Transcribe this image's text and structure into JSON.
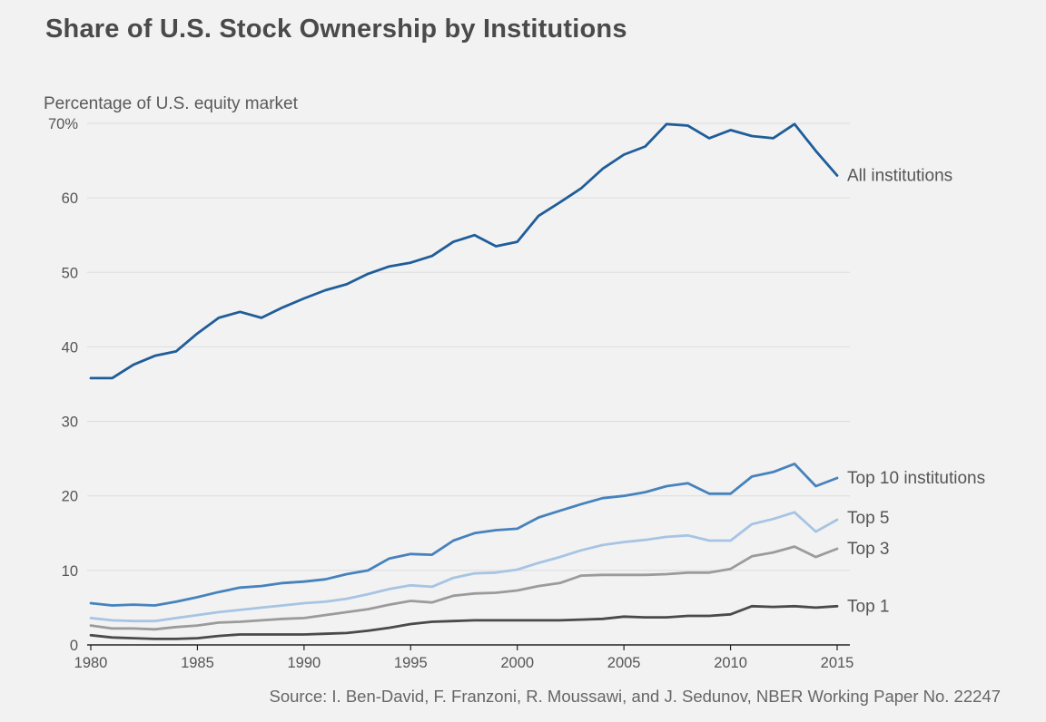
{
  "title": "Share of U.S. Stock Ownership by Institutions",
  "source": "Source: I. Ben-David, F. Franzoni, R. Moussawi, and J. Sedunov, NBER Working Paper No. 22247",
  "chart_data": {
    "type": "line",
    "title": "Share of U.S. Stock Ownership by Institutions",
    "ylabel": "Percentage of U.S. equity market",
    "xlabel": "",
    "xlim": [
      1980,
      2015
    ],
    "ylim": [
      0,
      70
    ],
    "grid": true,
    "x": [
      1980,
      1981,
      1982,
      1983,
      1984,
      1985,
      1986,
      1987,
      1988,
      1989,
      1990,
      1991,
      1992,
      1993,
      1994,
      1995,
      1996,
      1997,
      1998,
      1999,
      2000,
      2001,
      2002,
      2003,
      2004,
      2005,
      2006,
      2007,
      2008,
      2009,
      2010,
      2011,
      2012,
      2013,
      2014,
      2015
    ],
    "x_ticks": [
      {
        "value": 1980,
        "label": "1980"
      },
      {
        "value": 1985,
        "label": "1985"
      },
      {
        "value": 1990,
        "label": "1990"
      },
      {
        "value": 1995,
        "label": "1995"
      },
      {
        "value": 2000,
        "label": "2000"
      },
      {
        "value": 2005,
        "label": "2005"
      },
      {
        "value": 2010,
        "label": "2010"
      },
      {
        "value": 2015,
        "label": "2015"
      }
    ],
    "y_ticks": [
      {
        "value": 0,
        "label": "0"
      },
      {
        "value": 10,
        "label": "10"
      },
      {
        "value": 20,
        "label": "20"
      },
      {
        "value": 30,
        "label": "30"
      },
      {
        "value": 40,
        "label": "40"
      },
      {
        "value": 50,
        "label": "50"
      },
      {
        "value": 60,
        "label": "60"
      },
      {
        "value": 70,
        "label": "70%"
      }
    ],
    "series": [
      {
        "name": "All institutions",
        "color": "#1f5d99",
        "values": [
          35.8,
          35.8,
          37.6,
          38.8,
          39.4,
          41.8,
          43.9,
          44.7,
          43.9,
          45.3,
          46.5,
          47.6,
          48.4,
          49.8,
          50.8,
          51.3,
          52.2,
          54.1,
          55.0,
          53.5,
          54.1,
          57.6,
          59.4,
          61.3,
          63.9,
          65.8,
          66.9,
          69.9,
          69.7,
          68.0,
          69.1,
          68.3,
          68.0,
          69.9,
          66.3,
          63.0
        ]
      },
      {
        "name": "Top 10 institutions",
        "color": "#4682bd",
        "values": [
          5.6,
          5.3,
          5.4,
          5.3,
          5.8,
          6.4,
          7.1,
          7.7,
          7.9,
          8.3,
          8.5,
          8.8,
          9.5,
          10.0,
          11.6,
          12.2,
          12.1,
          14.0,
          15.0,
          15.4,
          15.6,
          17.1,
          18.0,
          18.9,
          19.7,
          20.0,
          20.5,
          21.3,
          21.7,
          20.3,
          20.3,
          22.6,
          23.2,
          24.3,
          21.3,
          22.4
        ]
      },
      {
        "name": "Top 5",
        "color": "#a7c4e4",
        "values": [
          3.6,
          3.3,
          3.2,
          3.2,
          3.6,
          4.0,
          4.4,
          4.7,
          5.0,
          5.3,
          5.6,
          5.8,
          6.2,
          6.8,
          7.5,
          8.0,
          7.8,
          9.0,
          9.6,
          9.7,
          10.1,
          11.0,
          11.8,
          12.7,
          13.4,
          13.8,
          14.1,
          14.5,
          14.7,
          14.0,
          14.0,
          16.2,
          16.9,
          17.8,
          15.2,
          16.8
        ]
      },
      {
        "name": "Top 3",
        "color": "#9b9b9b",
        "values": [
          2.6,
          2.2,
          2.2,
          2.1,
          2.4,
          2.6,
          3.0,
          3.1,
          3.3,
          3.5,
          3.6,
          4.0,
          4.4,
          4.8,
          5.4,
          5.9,
          5.7,
          6.6,
          6.9,
          7.0,
          7.3,
          7.9,
          8.3,
          9.3,
          9.4,
          9.4,
          9.4,
          9.5,
          9.7,
          9.7,
          10.2,
          11.9,
          12.4,
          13.2,
          11.8,
          12.9
        ]
      },
      {
        "name": "Top 1",
        "color": "#4a4a4a",
        "values": [
          1.3,
          1.0,
          0.9,
          0.8,
          0.8,
          0.9,
          1.2,
          1.4,
          1.4,
          1.4,
          1.4,
          1.5,
          1.6,
          1.9,
          2.3,
          2.8,
          3.1,
          3.2,
          3.3,
          3.3,
          3.3,
          3.3,
          3.3,
          3.4,
          3.5,
          3.8,
          3.7,
          3.7,
          3.9,
          3.9,
          4.1,
          5.2,
          5.1,
          5.2,
          5.0,
          5.2
        ]
      }
    ]
  }
}
